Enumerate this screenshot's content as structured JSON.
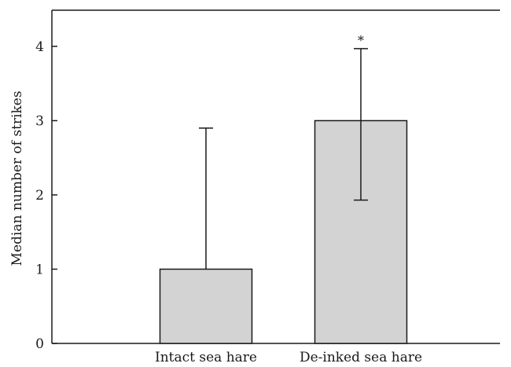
{
  "chart_data": {
    "type": "bar",
    "title": "",
    "xlabel": "",
    "ylabel": "Median number of strikes",
    "ylim": [
      0,
      4.5
    ],
    "yticks": [
      "0",
      "1",
      "2",
      "3",
      "4"
    ],
    "categories": [
      "Intact sea hare",
      "De-inked sea hare"
    ],
    "values": [
      1,
      3
    ],
    "error_low": [
      null,
      1.93
    ],
    "error_high": [
      2.9,
      3.97
    ],
    "annotations": [
      {
        "category": "De-inked sea hare",
        "text": "*"
      }
    ],
    "grid": false,
    "legend": "none",
    "bar_color": "#d3d3d3",
    "edge_color": "#1a1a1a"
  }
}
